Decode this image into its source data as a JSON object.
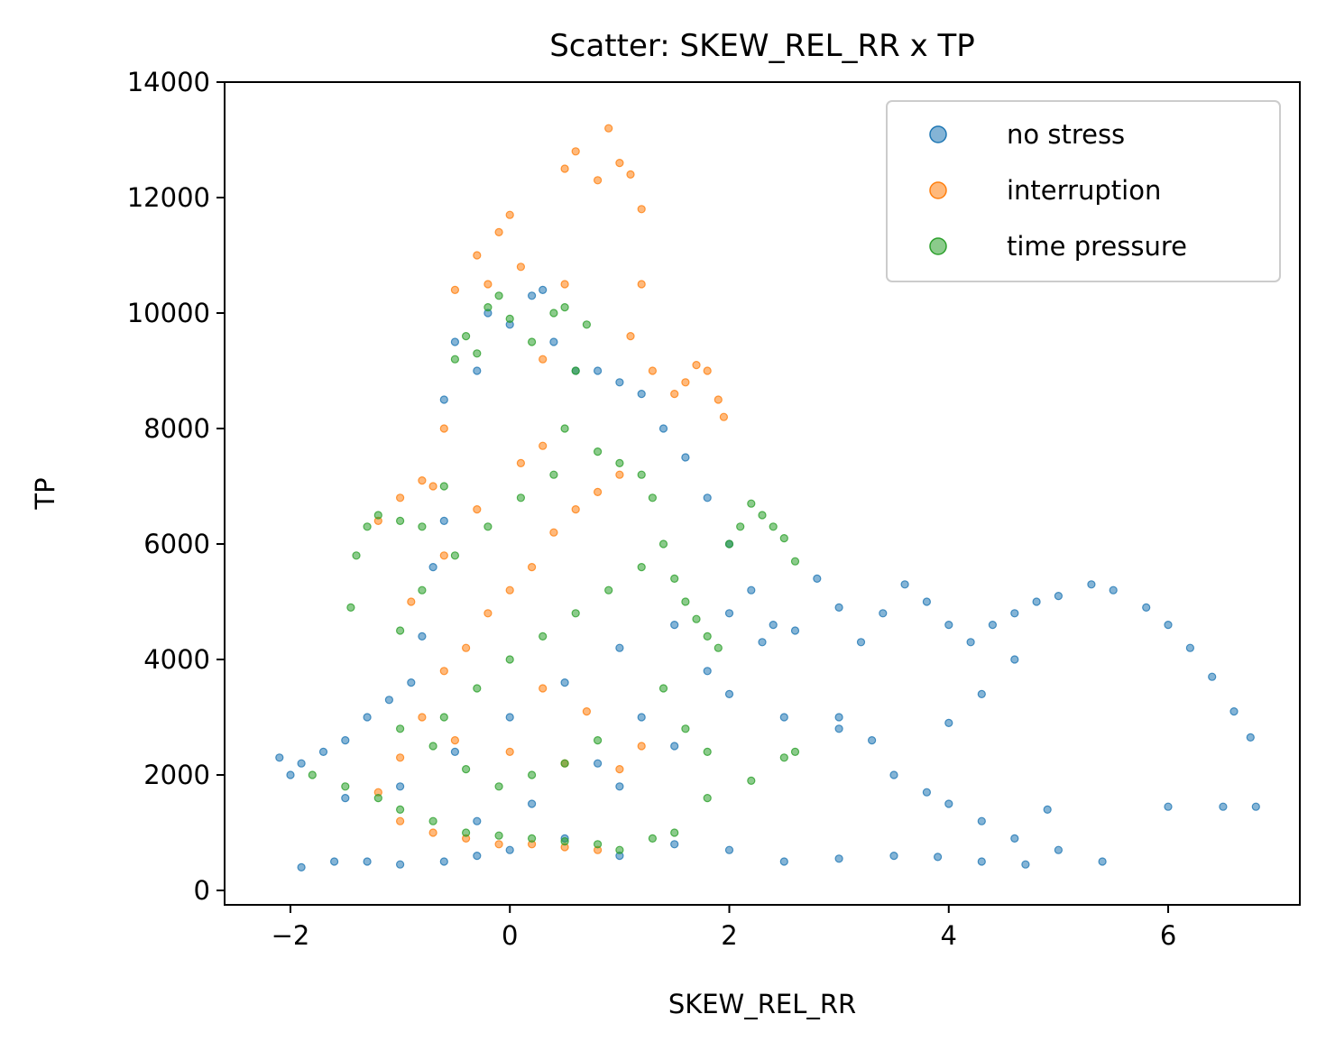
{
  "chart_data": {
    "type": "scatter",
    "title": "Scatter: SKEW_REL_RR x TP",
    "xlabel": "SKEW_REL_RR",
    "ylabel": "TP",
    "xlim": [
      -2.6,
      7.2
    ],
    "ylim": [
      -250,
      14000
    ],
    "xticks": [
      -2,
      0,
      2,
      4,
      6
    ],
    "xtick_labels": [
      "−2",
      "0",
      "2",
      "4",
      "6"
    ],
    "yticks": [
      0,
      2000,
      4000,
      6000,
      8000,
      10000,
      12000,
      14000
    ],
    "ytick_labels": [
      "0",
      "2000",
      "4000",
      "6000",
      "8000",
      "10000",
      "12000",
      "14000"
    ],
    "grid": false,
    "legend_position": "top-right",
    "series": [
      {
        "name": "no stress",
        "color": "#1f77b4",
        "points": [
          [
            -2.1,
            2300
          ],
          [
            -1.9,
            2200
          ],
          [
            -1.7,
            2400
          ],
          [
            -1.5,
            2600
          ],
          [
            -1.3,
            3000
          ],
          [
            -1.1,
            3300
          ],
          [
            -0.9,
            3600
          ],
          [
            -0.8,
            4400
          ],
          [
            -0.7,
            5600
          ],
          [
            -0.6,
            6400
          ],
          [
            -0.6,
            8500
          ],
          [
            -0.5,
            9500
          ],
          [
            -0.3,
            9000
          ],
          [
            -0.2,
            10000
          ],
          [
            0.0,
            9800
          ],
          [
            0.2,
            10300
          ],
          [
            0.3,
            10400
          ],
          [
            0.4,
            9500
          ],
          [
            0.6,
            9000
          ],
          [
            0.8,
            9000
          ],
          [
            1.0,
            8800
          ],
          [
            1.2,
            8600
          ],
          [
            1.4,
            8000
          ],
          [
            1.6,
            7500
          ],
          [
            1.8,
            6800
          ],
          [
            2.0,
            6000
          ],
          [
            2.2,
            5200
          ],
          [
            2.4,
            4600
          ],
          [
            2.6,
            4500
          ],
          [
            2.8,
            5400
          ],
          [
            3.0,
            4900
          ],
          [
            3.2,
            4300
          ],
          [
            3.4,
            4800
          ],
          [
            3.6,
            5300
          ],
          [
            3.8,
            5000
          ],
          [
            4.0,
            4600
          ],
          [
            4.2,
            4300
          ],
          [
            4.4,
            4600
          ],
          [
            4.6,
            4800
          ],
          [
            4.8,
            5000
          ],
          [
            5.0,
            5100
          ],
          [
            5.3,
            5300
          ],
          [
            5.5,
            5200
          ],
          [
            5.8,
            4900
          ],
          [
            6.0,
            4600
          ],
          [
            6.2,
            4200
          ],
          [
            6.4,
            3700
          ],
          [
            6.6,
            3100
          ],
          [
            6.75,
            2650
          ],
          [
            4.0,
            2900
          ],
          [
            4.3,
            3400
          ],
          [
            4.6,
            4000
          ],
          [
            3.0,
            3000
          ],
          [
            3.3,
            2600
          ],
          [
            3.5,
            2000
          ],
          [
            3.8,
            1700
          ],
          [
            4.0,
            1500
          ],
          [
            4.3,
            1200
          ],
          [
            4.6,
            900
          ],
          [
            5.0,
            700
          ],
          [
            5.4,
            500
          ],
          [
            6.0,
            1450
          ],
          [
            6.5,
            1450
          ],
          [
            6.8,
            1450
          ],
          [
            4.9,
            1400
          ],
          [
            4.7,
            450
          ],
          [
            4.3,
            500
          ],
          [
            3.9,
            580
          ],
          [
            3.5,
            600
          ],
          [
            3.0,
            550
          ],
          [
            2.5,
            500
          ],
          [
            2.0,
            700
          ],
          [
            1.5,
            800
          ],
          [
            1.0,
            600
          ],
          [
            -1.9,
            400
          ],
          [
            -1.6,
            500
          ],
          [
            -1.3,
            500
          ],
          [
            -1.0,
            450
          ],
          [
            -0.6,
            500
          ],
          [
            -0.3,
            600
          ],
          [
            0.0,
            700
          ],
          [
            0.5,
            900
          ],
          [
            1.0,
            1800
          ],
          [
            1.5,
            2500
          ],
          [
            2.0,
            3400
          ],
          [
            2.5,
            3000
          ],
          [
            3.0,
            2800
          ],
          [
            -2.0,
            2000
          ],
          [
            -1.5,
            1600
          ],
          [
            -1.0,
            1800
          ],
          [
            -0.5,
            2400
          ],
          [
            0.0,
            3000
          ],
          [
            0.5,
            3600
          ],
          [
            1.0,
            4200
          ],
          [
            1.5,
            4600
          ],
          [
            2.0,
            4800
          ],
          [
            2.3,
            4300
          ],
          [
            1.8,
            3800
          ],
          [
            1.2,
            3000
          ],
          [
            0.8,
            2200
          ],
          [
            0.2,
            1500
          ],
          [
            -0.3,
            1200
          ]
        ]
      },
      {
        "name": "interruption",
        "color": "#ff7f0e",
        "points": [
          [
            -1.2,
            6400
          ],
          [
            -1.0,
            6800
          ],
          [
            -0.8,
            7100
          ],
          [
            -0.7,
            7000
          ],
          [
            -0.6,
            8000
          ],
          [
            -0.5,
            10400
          ],
          [
            -0.3,
            11000
          ],
          [
            -0.2,
            10500
          ],
          [
            -0.1,
            11400
          ],
          [
            0.0,
            11700
          ],
          [
            0.1,
            10800
          ],
          [
            0.3,
            9200
          ],
          [
            0.5,
            10500
          ],
          [
            0.5,
            12500
          ],
          [
            0.6,
            12800
          ],
          [
            0.8,
            12300
          ],
          [
            0.9,
            13200
          ],
          [
            1.0,
            12600
          ],
          [
            1.1,
            12400
          ],
          [
            1.2,
            11800
          ],
          [
            1.2,
            10500
          ],
          [
            1.1,
            9600
          ],
          [
            1.3,
            9000
          ],
          [
            1.5,
            8600
          ],
          [
            1.6,
            8800
          ],
          [
            1.7,
            9100
          ],
          [
            1.8,
            9000
          ],
          [
            1.9,
            8500
          ],
          [
            1.95,
            8200
          ],
          [
            -1.0,
            2300
          ],
          [
            -0.8,
            3000
          ],
          [
            -0.6,
            3800
          ],
          [
            -0.4,
            4200
          ],
          [
            -0.2,
            4800
          ],
          [
            0.0,
            5200
          ],
          [
            0.2,
            5600
          ],
          [
            0.4,
            6200
          ],
          [
            0.6,
            6600
          ],
          [
            0.8,
            6900
          ],
          [
            1.0,
            7200
          ],
          [
            -1.2,
            1700
          ],
          [
            -1.0,
            1200
          ],
          [
            -0.7,
            1000
          ],
          [
            -0.4,
            900
          ],
          [
            -0.1,
            800
          ],
          [
            0.2,
            800
          ],
          [
            0.5,
            750
          ],
          [
            0.8,
            700
          ],
          [
            -0.9,
            5000
          ],
          [
            -0.6,
            5800
          ],
          [
            -0.3,
            6600
          ],
          [
            0.1,
            7400
          ],
          [
            0.3,
            7700
          ],
          [
            -0.5,
            2600
          ],
          [
            0.0,
            2400
          ],
          [
            0.5,
            2200
          ],
          [
            1.0,
            2100
          ],
          [
            1.2,
            2500
          ],
          [
            0.7,
            3100
          ],
          [
            0.3,
            3500
          ]
        ]
      },
      {
        "name": "time pressure",
        "color": "#2ca02c",
        "points": [
          [
            -1.45,
            4900
          ],
          [
            -1.4,
            5800
          ],
          [
            -1.3,
            6300
          ],
          [
            -1.2,
            6500
          ],
          [
            -1.0,
            6400
          ],
          [
            -0.8,
            6300
          ],
          [
            -0.6,
            7000
          ],
          [
            -0.5,
            9200
          ],
          [
            -0.4,
            9600
          ],
          [
            -0.3,
            9300
          ],
          [
            -0.2,
            10100
          ],
          [
            -0.1,
            10300
          ],
          [
            0.0,
            9900
          ],
          [
            0.2,
            9500
          ],
          [
            0.4,
            10000
          ],
          [
            0.5,
            10100
          ],
          [
            0.7,
            9800
          ],
          [
            0.6,
            9000
          ],
          [
            0.5,
            8000
          ],
          [
            0.8,
            7600
          ],
          [
            1.0,
            7400
          ],
          [
            1.2,
            7200
          ],
          [
            1.3,
            6800
          ],
          [
            1.4,
            6000
          ],
          [
            1.5,
            5400
          ],
          [
            1.6,
            5000
          ],
          [
            1.7,
            4700
          ],
          [
            1.8,
            4400
          ],
          [
            1.9,
            4200
          ],
          [
            2.0,
            6000
          ],
          [
            2.1,
            6300
          ],
          [
            2.2,
            6700
          ],
          [
            2.3,
            6500
          ],
          [
            2.4,
            6300
          ],
          [
            2.5,
            6100
          ],
          [
            2.6,
            5700
          ],
          [
            -1.8,
            2000
          ],
          [
            -1.5,
            1800
          ],
          [
            -1.2,
            1600
          ],
          [
            -1.0,
            1400
          ],
          [
            -0.7,
            1200
          ],
          [
            -0.4,
            1000
          ],
          [
            -0.1,
            950
          ],
          [
            0.2,
            900
          ],
          [
            0.5,
            850
          ],
          [
            0.8,
            800
          ],
          [
            1.0,
            700
          ],
          [
            1.3,
            900
          ],
          [
            1.5,
            1000
          ],
          [
            1.8,
            1600
          ],
          [
            2.2,
            1900
          ],
          [
            2.5,
            2300
          ],
          [
            2.6,
            2400
          ],
          [
            -1.0,
            4500
          ],
          [
            -0.8,
            5200
          ],
          [
            -0.5,
            5800
          ],
          [
            -0.2,
            6300
          ],
          [
            0.1,
            6800
          ],
          [
            0.4,
            7200
          ],
          [
            -0.6,
            3000
          ],
          [
            -0.3,
            3500
          ],
          [
            0.0,
            4000
          ],
          [
            0.3,
            4400
          ],
          [
            0.6,
            4800
          ],
          [
            0.9,
            5200
          ],
          [
            1.2,
            5600
          ],
          [
            1.4,
            3500
          ],
          [
            1.6,
            2800
          ],
          [
            1.8,
            2400
          ],
          [
            0.8,
            2600
          ],
          [
            0.5,
            2200
          ],
          [
            0.2,
            2000
          ],
          [
            -0.1,
            1800
          ],
          [
            -0.4,
            2100
          ],
          [
            -0.7,
            2500
          ],
          [
            -1.0,
            2800
          ]
        ]
      }
    ]
  }
}
